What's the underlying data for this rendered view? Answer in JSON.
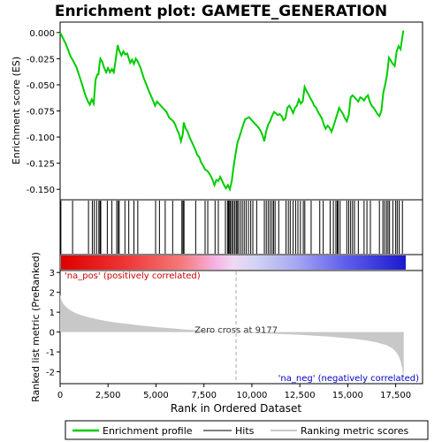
{
  "chart_data": {
    "type": "line",
    "title": "Enrichment plot: GAMETE_GENERATION",
    "top_panel": {
      "ylabel": "Enrichment score (ES)",
      "ylim": [
        -0.16,
        0.01
      ],
      "yticks": [
        0.0,
        -0.025,
        -0.05,
        -0.075,
        -0.1,
        -0.125,
        -0.15
      ],
      "ytick_labels": [
        "0.000",
        "-0.025",
        "-0.050",
        "-0.075",
        "-0.100",
        "-0.125",
        "-0.150"
      ],
      "series_color": "#00cc00",
      "es_curve": [
        [
          0,
          0.0
        ],
        [
          300,
          -0.011
        ],
        [
          550,
          -0.023
        ],
        [
          650,
          -0.026
        ],
        [
          850,
          -0.033
        ],
        [
          1100,
          -0.047
        ],
        [
          1300,
          -0.059
        ],
        [
          1450,
          -0.066
        ],
        [
          1550,
          -0.069
        ],
        [
          1650,
          -0.064
        ],
        [
          1750,
          -0.068
        ],
        [
          1850,
          -0.045
        ],
        [
          1950,
          -0.04
        ],
        [
          2000,
          -0.04
        ],
        [
          2050,
          -0.031
        ],
        [
          2100,
          -0.025
        ],
        [
          2200,
          -0.028
        ],
        [
          2300,
          -0.034
        ],
        [
          2400,
          -0.038
        ],
        [
          2500,
          -0.034
        ],
        [
          2600,
          -0.038
        ],
        [
          2700,
          -0.035
        ],
        [
          2800,
          -0.038
        ],
        [
          2900,
          -0.026
        ],
        [
          3000,
          -0.012
        ],
        [
          3100,
          -0.018
        ],
        [
          3200,
          -0.022
        ],
        [
          3300,
          -0.018
        ],
        [
          3400,
          -0.021
        ],
        [
          3500,
          -0.02
        ],
        [
          3650,
          -0.029
        ],
        [
          3750,
          -0.026
        ],
        [
          3850,
          -0.03
        ],
        [
          3950,
          -0.025
        ],
        [
          4050,
          -0.028
        ],
        [
          4200,
          -0.034
        ],
        [
          4350,
          -0.043
        ],
        [
          4500,
          -0.05
        ],
        [
          4650,
          -0.057
        ],
        [
          4800,
          -0.063
        ],
        [
          4950,
          -0.07
        ],
        [
          5050,
          -0.066
        ],
        [
          5150,
          -0.068
        ],
        [
          5250,
          -0.07
        ],
        [
          5350,
          -0.072
        ],
        [
          5450,
          -0.074
        ],
        [
          5550,
          -0.076
        ],
        [
          5700,
          -0.082
        ],
        [
          5800,
          -0.083
        ],
        [
          5900,
          -0.085
        ],
        [
          6000,
          -0.088
        ],
        [
          6100,
          -0.093
        ],
        [
          6200,
          -0.097
        ],
        [
          6300,
          -0.104
        ],
        [
          6400,
          -0.097
        ],
        [
          6450,
          -0.086
        ],
        [
          6550,
          -0.092
        ],
        [
          6650,
          -0.095
        ],
        [
          6750,
          -0.1
        ],
        [
          6850,
          -0.104
        ],
        [
          6950,
          -0.108
        ],
        [
          7050,
          -0.112
        ],
        [
          7150,
          -0.117
        ],
        [
          7250,
          -0.119
        ],
        [
          7350,
          -0.124
        ],
        [
          7450,
          -0.127
        ],
        [
          7550,
          -0.131
        ],
        [
          7650,
          -0.132
        ],
        [
          7750,
          -0.134
        ],
        [
          7850,
          -0.137
        ],
        [
          7950,
          -0.141
        ],
        [
          8050,
          -0.146
        ],
        [
          8150,
          -0.141
        ],
        [
          8250,
          -0.142
        ],
        [
          8350,
          -0.138
        ],
        [
          8450,
          -0.142
        ],
        [
          8550,
          -0.146
        ],
        [
          8650,
          -0.149
        ],
        [
          8750,
          -0.146
        ],
        [
          8850,
          -0.15
        ],
        [
          8950,
          -0.142
        ],
        [
          9050,
          -0.128
        ],
        [
          9150,
          -0.116
        ],
        [
          9250,
          -0.105
        ],
        [
          9350,
          -0.1
        ],
        [
          9450,
          -0.094
        ],
        [
          9550,
          -0.088
        ],
        [
          9650,
          -0.083
        ],
        [
          9750,
          -0.082
        ],
        [
          9850,
          -0.081
        ],
        [
          9950,
          -0.083
        ],
        [
          10050,
          -0.085
        ],
        [
          10150,
          -0.087
        ],
        [
          10250,
          -0.089
        ],
        [
          10350,
          -0.091
        ],
        [
          10450,
          -0.094
        ],
        [
          10550,
          -0.098
        ],
        [
          10650,
          -0.104
        ],
        [
          10750,
          -0.094
        ],
        [
          10850,
          -0.088
        ],
        [
          10950,
          -0.085
        ],
        [
          11050,
          -0.08
        ],
        [
          11150,
          -0.076
        ],
        [
          11250,
          -0.077
        ],
        [
          11350,
          -0.079
        ],
        [
          11450,
          -0.078
        ],
        [
          11550,
          -0.08
        ],
        [
          11650,
          -0.084
        ],
        [
          11750,
          -0.082
        ],
        [
          11850,
          -0.072
        ],
        [
          11950,
          -0.07
        ],
        [
          12050,
          -0.073
        ],
        [
          12150,
          -0.077
        ],
        [
          12250,
          -0.072
        ],
        [
          12350,
          -0.07
        ],
        [
          12450,
          -0.064
        ],
        [
          12550,
          -0.068
        ],
        [
          12650,
          -0.066
        ],
        [
          12750,
          -0.052
        ],
        [
          12850,
          -0.056
        ],
        [
          12950,
          -0.059
        ],
        [
          13050,
          -0.063
        ],
        [
          13150,
          -0.066
        ],
        [
          13250,
          -0.07
        ],
        [
          13350,
          -0.072
        ],
        [
          13450,
          -0.076
        ],
        [
          13550,
          -0.079
        ],
        [
          13650,
          -0.082
        ],
        [
          13750,
          -0.088
        ],
        [
          13850,
          -0.092
        ],
        [
          13950,
          -0.089
        ],
        [
          14050,
          -0.091
        ],
        [
          14150,
          -0.095
        ],
        [
          14250,
          -0.09
        ],
        [
          14350,
          -0.084
        ],
        [
          14450,
          -0.078
        ],
        [
          14550,
          -0.072
        ],
        [
          14650,
          -0.075
        ],
        [
          14750,
          -0.078
        ],
        [
          14850,
          -0.082
        ],
        [
          14950,
          -0.085
        ],
        [
          15050,
          -0.079
        ],
        [
          15150,
          -0.062
        ],
        [
          15250,
          -0.06
        ],
        [
          15350,
          -0.062
        ],
        [
          15450,
          -0.064
        ],
        [
          15550,
          -0.066
        ],
        [
          15650,
          -0.062
        ],
        [
          15750,
          -0.063
        ],
        [
          15850,
          -0.065
        ],
        [
          15950,
          -0.062
        ],
        [
          16050,
          -0.06
        ],
        [
          16150,
          -0.066
        ],
        [
          16250,
          -0.07
        ],
        [
          16350,
          -0.072
        ],
        [
          16450,
          -0.075
        ],
        [
          16550,
          -0.078
        ],
        [
          16650,
          -0.08
        ],
        [
          16750,
          -0.075
        ],
        [
          16850,
          -0.058
        ],
        [
          16950,
          -0.05
        ],
        [
          17050,
          -0.04
        ],
        [
          17150,
          -0.024
        ],
        [
          17250,
          -0.027
        ],
        [
          17350,
          -0.03
        ],
        [
          17450,
          -0.032
        ],
        [
          17550,
          -0.018
        ],
        [
          17650,
          -0.013
        ],
        [
          17750,
          -0.016
        ],
        [
          17850,
          -0.004
        ],
        [
          17900,
          0.002
        ]
      ]
    },
    "hits": [
      40,
      650,
      1480,
      1680,
      1780,
      1900,
      2020,
      2080,
      2120,
      2460,
      2700,
      2950,
      3030,
      3080,
      3380,
      3580,
      3850,
      4050,
      4980,
      5180,
      5480,
      5870,
      6350,
      6410,
      6460,
      7070,
      7560,
      7700,
      8080,
      8250,
      8620,
      8730,
      8780,
      8840,
      8880,
      8950,
      9020,
      9100,
      9180,
      9230,
      9300,
      9400,
      9500,
      9600,
      9700,
      9820,
      9940,
      10050,
      10250,
      10650,
      10750,
      10850,
      10950,
      11050,
      11130,
      11210,
      11400,
      11780,
      11900,
      12000,
      12150,
      12280,
      12400,
      12530,
      12680,
      12760,
      13090,
      13540,
      13720,
      14080,
      14250,
      14380,
      14450,
      14500,
      14600,
      14950,
      15050,
      15150,
      15250,
      15350,
      15550,
      15850,
      16000,
      16180,
      16650,
      16830,
      16920,
      17020,
      17100,
      17180,
      17350,
      17500,
      17580,
      17680,
      17850
    ],
    "bottom_panel": {
      "ylabel": "Ranked list metric (PreRanked)",
      "ylim": [
        -2.6,
        3.1
      ],
      "yticks": [
        3,
        2,
        1,
        0,
        -1,
        -2
      ],
      "ytick_labels": [
        "3",
        "2",
        "1",
        "0",
        "-1",
        "-2"
      ],
      "metric_curve": [
        [
          0,
          1.9
        ],
        [
          50,
          1.65
        ],
        [
          150,
          1.45
        ],
        [
          300,
          1.28
        ],
        [
          500,
          1.12
        ],
        [
          750,
          0.98
        ],
        [
          1000,
          0.88
        ],
        [
          1500,
          0.74
        ],
        [
          2000,
          0.63
        ],
        [
          2500,
          0.54
        ],
        [
          3000,
          0.47
        ],
        [
          3500,
          0.41
        ],
        [
          4000,
          0.35
        ],
        [
          4500,
          0.3
        ],
        [
          5000,
          0.25
        ],
        [
          5500,
          0.21
        ],
        [
          6000,
          0.17
        ],
        [
          6500,
          0.13
        ],
        [
          7000,
          0.1
        ],
        [
          7500,
          0.07
        ],
        [
          8000,
          0.04
        ],
        [
          8500,
          0.02
        ],
        [
          9177,
          0.0
        ],
        [
          9500,
          -0.02
        ],
        [
          10000,
          -0.04
        ],
        [
          10500,
          -0.06
        ],
        [
          11000,
          -0.08
        ],
        [
          11500,
          -0.1
        ],
        [
          12000,
          -0.12
        ],
        [
          12500,
          -0.14
        ],
        [
          13000,
          -0.17
        ],
        [
          13500,
          -0.2
        ],
        [
          14000,
          -0.23
        ],
        [
          14500,
          -0.27
        ],
        [
          15000,
          -0.31
        ],
        [
          15500,
          -0.36
        ],
        [
          16000,
          -0.43
        ],
        [
          16500,
          -0.52
        ],
        [
          17000,
          -0.65
        ],
        [
          17300,
          -0.8
        ],
        [
          17500,
          -0.98
        ],
        [
          17650,
          -1.2
        ],
        [
          17750,
          -1.45
        ],
        [
          17850,
          -1.85
        ],
        [
          17920,
          -2.55
        ]
      ],
      "zero_cross_label": "Zero cross at 9177",
      "zero_cross": 9177,
      "pos_label": "'na_pos' (positively correlated)",
      "neg_label": "'na_neg' (negatively correlated)",
      "pos_color": "#cc0000",
      "neg_color": "#0000cc"
    },
    "xlabel": "Rank in Ordered Dataset",
    "xlim": [
      0,
      18900
    ],
    "xticks": [
      0,
      2500,
      5000,
      7500,
      10000,
      12500,
      15000,
      17500
    ],
    "xtick_labels": [
      "0",
      "2,500",
      "5,000",
      "7,500",
      "10,000",
      "12,500",
      "15,000",
      "17,500"
    ],
    "n_genes": 17925,
    "legend": [
      "Enrichment profile",
      "Hits",
      "Ranking metric scores"
    ],
    "grid": false
  }
}
